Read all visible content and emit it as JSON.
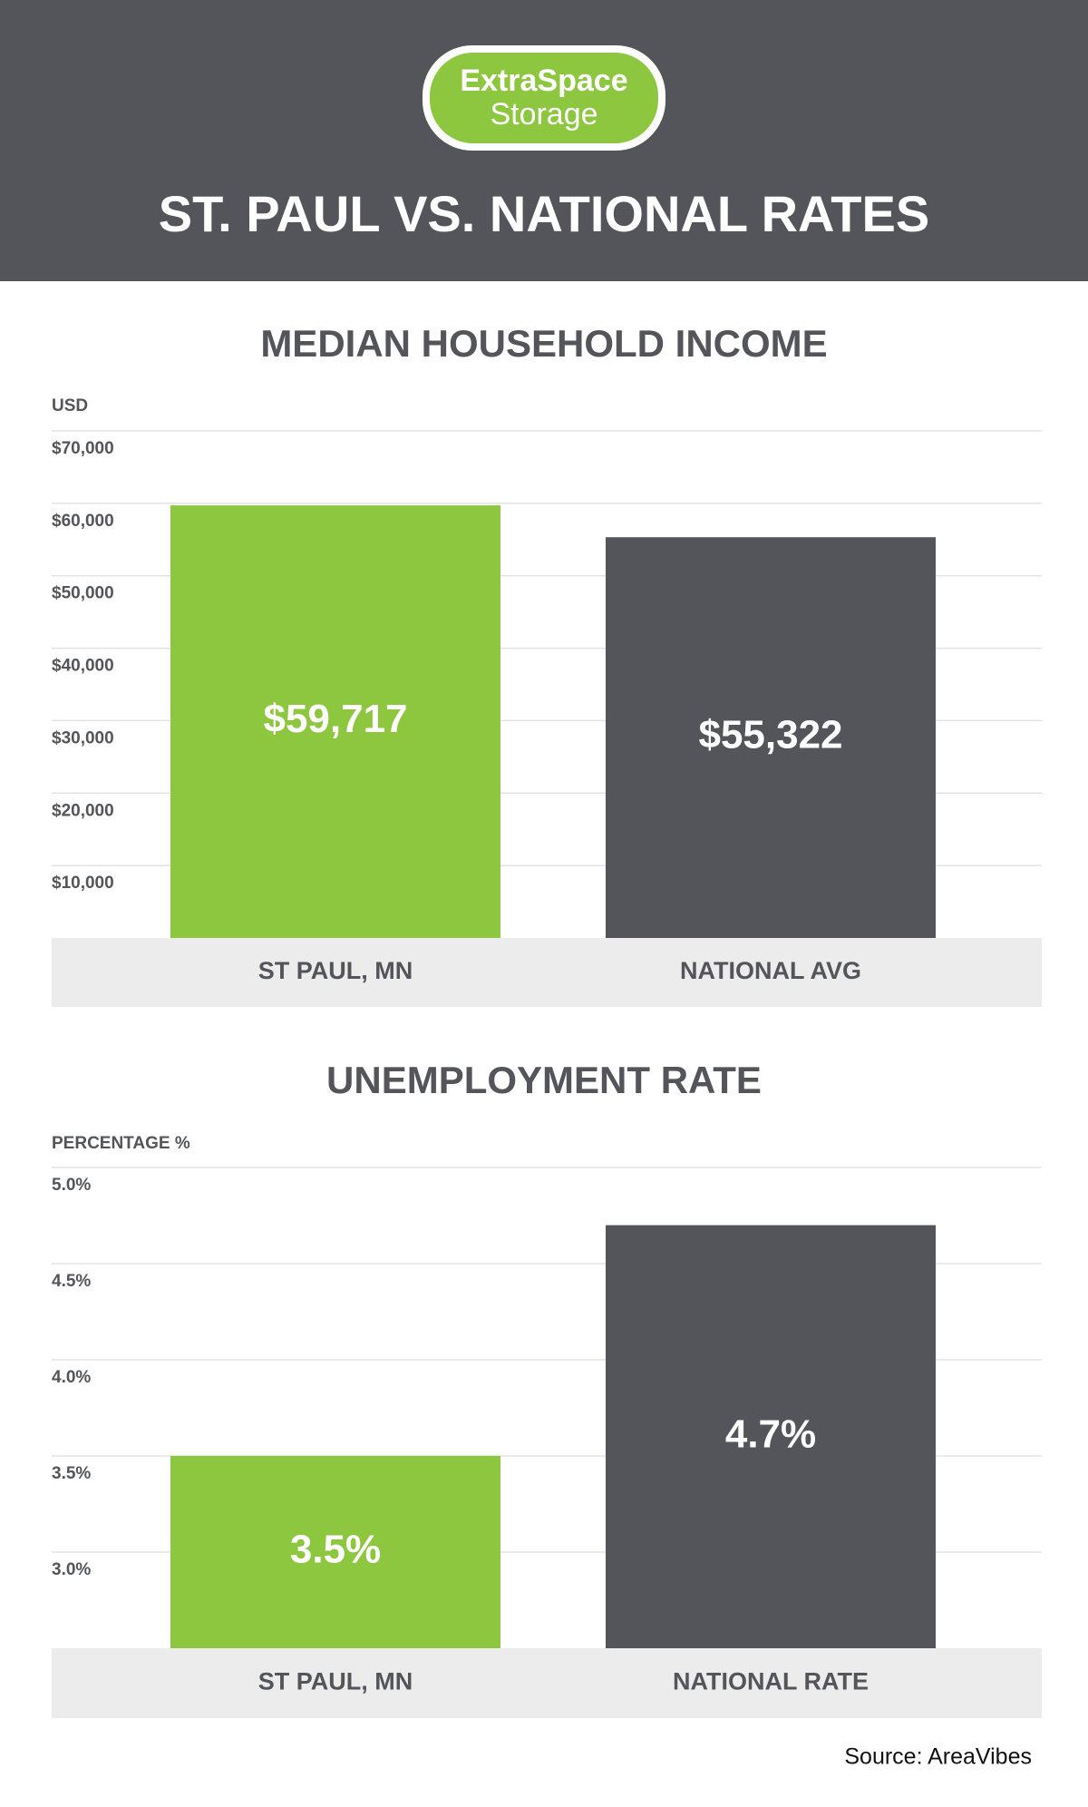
{
  "header": {
    "logo": {
      "line1": "ExtraSpace",
      "line2": "Storage"
    },
    "title": "ST. PAUL VS. NATIONAL RATES"
  },
  "chart_data": [
    {
      "type": "bar",
      "title": "MEDIAN HOUSEHOLD INCOME",
      "y_label": "USD",
      "categories": [
        "ST PAUL, MN",
        "NATIONAL AVG"
      ],
      "values": [
        59717,
        55322
      ],
      "value_labels": [
        "$59,717",
        "$55,322"
      ],
      "colors": [
        "#8dc63f",
        "#54555a"
      ],
      "ylim": [
        0,
        70000
      ],
      "yticks": [
        {
          "value": 10000,
          "label": "$10,000"
        },
        {
          "value": 20000,
          "label": "$20,000"
        },
        {
          "value": 30000,
          "label": "$30,000"
        },
        {
          "value": 40000,
          "label": "$40,000"
        },
        {
          "value": 50000,
          "label": "$50,000"
        },
        {
          "value": 60000,
          "label": "$60,000"
        },
        {
          "value": 70000,
          "label": "$70,000"
        }
      ],
      "grid": true
    },
    {
      "type": "bar",
      "title": "UNEMPLOYMENT RATE",
      "y_label": "PERCENTAGE %",
      "categories": [
        "ST PAUL, MN",
        "NATIONAL RATE"
      ],
      "values": [
        3.5,
        4.7
      ],
      "value_labels": [
        "3.5%",
        "4.7%"
      ],
      "colors": [
        "#8dc63f",
        "#54555a"
      ],
      "ylim": [
        2.5,
        5.0
      ],
      "yticks": [
        {
          "value": 3,
          "label": "3.0%"
        },
        {
          "value": 3.5,
          "label": "3.5%"
        },
        {
          "value": 4,
          "label": "4.0%"
        },
        {
          "value": 4.5,
          "label": "4.5%"
        },
        {
          "value": 5,
          "label": "5.0%"
        }
      ],
      "grid": true
    }
  ],
  "source": "Source: AreaVibes"
}
